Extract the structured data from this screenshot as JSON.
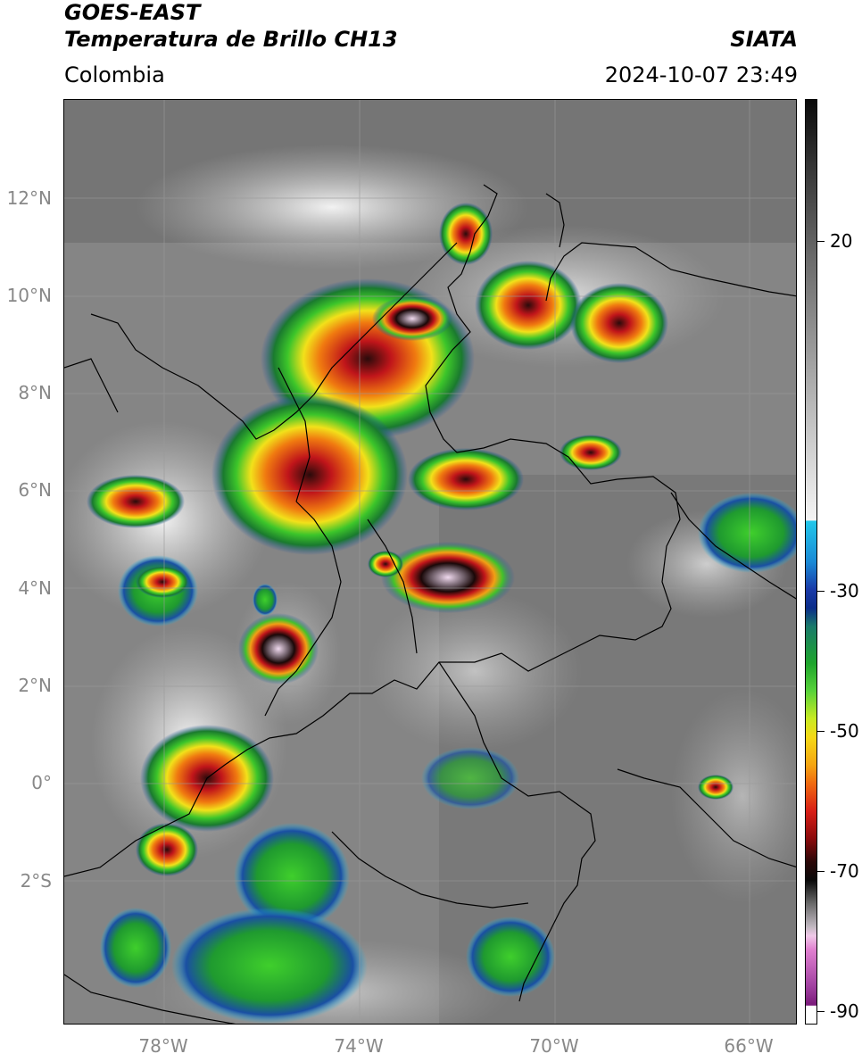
{
  "header": {
    "satellite": "GOES-EAST",
    "product": "Temperatura de Brillo CH13",
    "organization": "SIATA",
    "region": "Colombia",
    "timestamp": "2024-10-07 23:49"
  },
  "map": {
    "lat_labels": [
      "12°N",
      "10°N",
      "8°N",
      "6°N",
      "4°N",
      "2°N",
      "0°",
      "2°S"
    ],
    "lon_labels": [
      "78°W",
      "74°W",
      "70°W",
      "66°W"
    ]
  },
  "colorbar": {
    "labels": [
      "20",
      "-30",
      "-50",
      "-70",
      "-90"
    ]
  }
}
